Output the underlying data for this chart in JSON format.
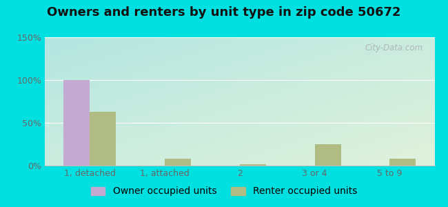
{
  "title": "Owners and renters by unit type in zip code 50672",
  "categories": [
    "1, detached",
    "1, attached",
    "2",
    "3 or 4",
    "5 to 9"
  ],
  "owner_values": [
    100,
    0,
    0,
    0,
    0
  ],
  "renter_values": [
    63,
    8,
    2,
    25,
    8
  ],
  "owner_color": "#c4aad0",
  "renter_color": "#b0bc84",
  "ylim": [
    0,
    150
  ],
  "yticks": [
    0,
    50,
    100,
    150
  ],
  "ytick_labels": [
    "0%",
    "50%",
    "100%",
    "150%"
  ],
  "bar_width": 0.35,
  "bg_topleft": [
    180,
    230,
    225
  ],
  "bg_bottomright": [
    225,
    242,
    220
  ],
  "outer_bg": "#00e0e0",
  "title_fontsize": 13,
  "legend_fontsize": 10,
  "tick_fontsize": 9,
  "watermark": "City-Data.com",
  "grid_color": "#dddddd",
  "spine_color": "#bbbbbb"
}
